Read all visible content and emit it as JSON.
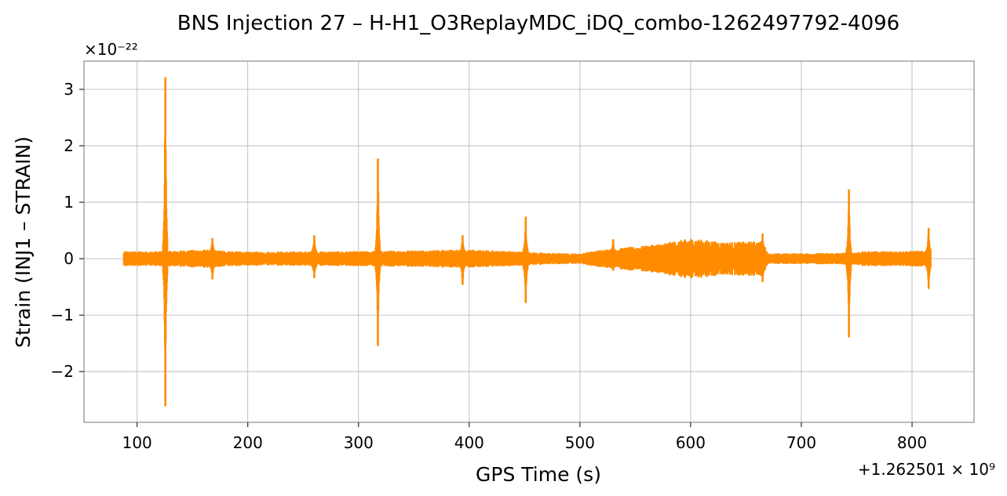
{
  "chart_data": {
    "type": "line",
    "title": "BNS Injection 27 – H-H1_O3ReplayMDC_iDQ_combo-1262497792-4096",
    "xlabel": "GPS Time (s)",
    "ylabel": "Strain (INJ1 – STRAIN)",
    "y_scale_label": "×10⁻²²",
    "x_offset_label": "+1.262501 × 10⁹",
    "xlim": [
      52,
      856
    ],
    "ylim": [
      -2.9,
      3.5
    ],
    "x_ticks": [
      100,
      200,
      300,
      400,
      500,
      600,
      700,
      800
    ],
    "y_ticks": [
      -2,
      -1,
      0,
      1,
      2,
      3
    ],
    "x_tick_labels": [
      "100",
      "200",
      "300",
      "400",
      "500",
      "600",
      "700",
      "800"
    ],
    "y_tick_labels": [
      "−2",
      "−1",
      "0",
      "1",
      "2",
      "3"
    ],
    "grid": true,
    "color": "#ff8c00",
    "series": [
      {
        "x_range": [
          88,
          817
        ],
        "baseline_amplitude": 0.12,
        "envelope": [
          {
            "x": 88,
            "amp": 0.12
          },
          {
            "x": 120,
            "amp": 0.12
          },
          {
            "x": 160,
            "amp": 0.15
          },
          {
            "x": 200,
            "amp": 0.11
          },
          {
            "x": 300,
            "amp": 0.12
          },
          {
            "x": 390,
            "amp": 0.15
          },
          {
            "x": 430,
            "amp": 0.13
          },
          {
            "x": 470,
            "amp": 0.09
          },
          {
            "x": 500,
            "amp": 0.08
          },
          {
            "x": 520,
            "amp": 0.15
          },
          {
            "x": 560,
            "amp": 0.22
          },
          {
            "x": 580,
            "amp": 0.28
          },
          {
            "x": 600,
            "amp": 0.35
          },
          {
            "x": 630,
            "amp": 0.28
          },
          {
            "x": 665,
            "amp": 0.3
          },
          {
            "x": 670,
            "amp": 0.08
          },
          {
            "x": 735,
            "amp": 0.09
          },
          {
            "x": 760,
            "amp": 0.12
          },
          {
            "x": 817,
            "amp": 0.13
          }
        ],
        "spikes": [
          {
            "x": 125.5,
            "max": 3.2,
            "min": -2.6
          },
          {
            "x": 168,
            "max": 0.35,
            "min": -0.35
          },
          {
            "x": 260,
            "max": 0.4,
            "min": -0.33
          },
          {
            "x": 317.5,
            "max": 1.76,
            "min": -1.53
          },
          {
            "x": 394,
            "max": 0.4,
            "min": -0.45
          },
          {
            "x": 451,
            "max": 0.73,
            "min": -0.77
          },
          {
            "x": 530,
            "max": 0.33,
            "min": -0.2
          },
          {
            "x": 665,
            "max": 0.43,
            "min": -0.4
          },
          {
            "x": 743,
            "max": 1.21,
            "min": -1.38
          },
          {
            "x": 815,
            "max": 0.53,
            "min": -0.52
          }
        ]
      }
    ]
  }
}
